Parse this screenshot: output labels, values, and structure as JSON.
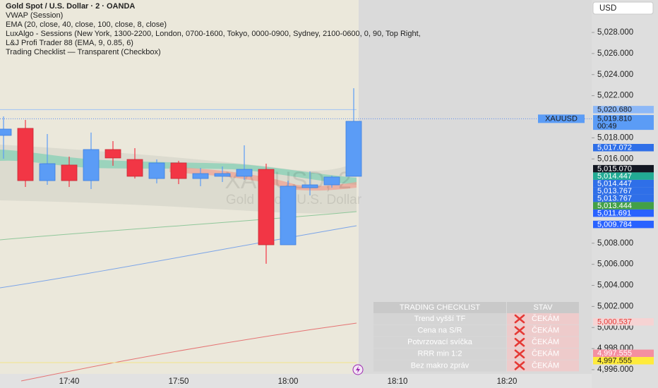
{
  "chart_data": {
    "type": "candlestick",
    "title": "Gold Spot / U.S. Dollar · 2 · OANDA",
    "indicators": [
      "VWAP (Session)",
      "EMA (20, close, 40, close, 100, close, 8, close)",
      "LuxAlgo - Sessions (New York, 1300-2200, London, 0700-1600, Tokyo, 0000-0900, Sydney, 2100-0600, 0, 90, Top Right,",
      "L&J Profi Trader 88 (EMA, 9, 0.85, 6)",
      "Trading Checklist — Transparent (Checkbox)"
    ],
    "watermark": {
      "symbol": "XAUUSD, 2",
      "description": "Gold Spot / U.S. Dollar"
    },
    "categories": [
      null,
      null,
      null,
      "17:40",
      null,
      null,
      null,
      null,
      "17:50",
      null,
      null,
      null,
      null,
      "18:00",
      null,
      null,
      null,
      null,
      "18:10",
      null,
      null,
      null,
      null,
      "18:20",
      null
    ],
    "open": [
      5018.23,
      5018.9,
      5013.94,
      5015.42,
      5013.94,
      5016.89,
      5015.95,
      5014.14,
      5015.62,
      5014.14,
      5014.35,
      5014.35,
      5015.01,
      5007.85,
      5013.27,
      5013.54,
      5014.35,
      null,
      null,
      null,
      null,
      null,
      null,
      null,
      null
    ],
    "high": [
      5020.03,
      5019.7,
      5018.36,
      5016.22,
      5018.5,
      5017.69,
      5017.02,
      5015.95,
      5015.82,
      5015.15,
      5015.28,
      5017.29,
      5015.55,
      5013.94,
      5014.81,
      5014.41,
      5022.71,
      null,
      null,
      null,
      null,
      null,
      null,
      null,
      null
    ],
    "low": [
      5016.02,
      5013.34,
      5013.54,
      5013.34,
      5013.14,
      5015.35,
      5014.14,
      5013.68,
      5013.61,
      5013.41,
      5013.81,
      5014.01,
      5006.05,
      5007.85,
      5012.54,
      5013.27,
      5014.35,
      null,
      null,
      null,
      null,
      null,
      null,
      null,
      null
    ],
    "close": [
      5018.83,
      5013.94,
      5015.55,
      5013.94,
      5016.89,
      5016.09,
      5014.35,
      5015.62,
      5014.14,
      5014.61,
      5014.61,
      5015.01,
      5007.85,
      5013.41,
      5013.54,
      5014.28,
      5019.57,
      null,
      null,
      null,
      null,
      null,
      null,
      null,
      null
    ],
    "up_color": "#5b9cf6",
    "down_color": "#f23645",
    "ylim": [
      4995.6,
      5031.08
    ],
    "yticks": [
      {
        "value": 4996,
        "label": "4,996.000"
      },
      {
        "value": 4998,
        "label": "4,998.000"
      },
      {
        "value": 5000,
        "label": "5,000.000"
      },
      {
        "value": 5002,
        "label": "5,002.000"
      },
      {
        "value": 5004,
        "label": "5,004.000"
      },
      {
        "value": 5006,
        "label": "5,006.000"
      },
      {
        "value": 5008,
        "label": "5,008.000"
      },
      {
        "value": 5016,
        "label": "5,016.000"
      },
      {
        "value": 5018,
        "label": "5,018.000"
      },
      {
        "value": 5022,
        "label": "5,022.000"
      },
      {
        "value": 5024,
        "label": "5,024.000"
      },
      {
        "value": 5026,
        "label": "5,026.000"
      },
      {
        "value": 5028,
        "label": "5,028.000"
      }
    ],
    "grid": false,
    "currency": "USD",
    "symbol_label": "XAUUSD",
    "last_price": {
      "value": 5019.81,
      "label": "5,019.810",
      "countdown": "00:49",
      "color": "#5b9cf6"
    },
    "price_labels": [
      {
        "value": 5020.68,
        "label": "5,020.680",
        "color": "#8db8f7",
        "text_color": "#1a1a1a"
      },
      {
        "value": 5017.072,
        "label": "5,017.072",
        "color": "#2f6fe8",
        "text_color": "#ffffff"
      },
      {
        "value": 5015.07,
        "label": "5,015.070",
        "color": "#131722",
        "text_color": "#ffffff"
      },
      {
        "value": 5014.447,
        "label": "5,014.447",
        "color": "#22ab94",
        "text_color": "#ffffff"
      },
      {
        "value": 5014.447,
        "label": "5,014.447",
        "color": "#2f6fe8",
        "text_color": "#ffffff"
      },
      {
        "value": 5013.767,
        "label": "5,013.767",
        "color": "#2f6fe8",
        "text_color": "#ffffff"
      },
      {
        "value": 5013.767,
        "label": "5,013.767",
        "color": "#2f6fe8",
        "text_color": "#ffffff"
      },
      {
        "value": 5013.444,
        "label": "5,013.444",
        "color": "#43a047",
        "text_color": "#ffffff"
      },
      {
        "value": 5011.691,
        "label": "5,011.691",
        "color": "#2962ff",
        "text_color": "#ffffff"
      },
      {
        "value": 5009.784,
        "label": "5,009.784",
        "color": "#2962ff",
        "text_color": "#ffffff"
      },
      {
        "value": 5000.537,
        "label": "5,000.537",
        "color": "#f6d3d3",
        "text_color": "#e53935"
      },
      {
        "value": 4997.555,
        "label": "4,997.555",
        "color": "#f48fa0",
        "text_color": "#ffffff"
      },
      {
        "value": 4997.555,
        "label": "4,997.555",
        "color": "#ffeb3b",
        "text_color": "#1a1a1a"
      }
    ]
  },
  "checklist": {
    "header": [
      "TRADING CHECKLIST",
      "STAV"
    ],
    "rows": [
      {
        "item": "Trend vyšší TF",
        "status": "ČEKÁM"
      },
      {
        "item": "Cena na S/R",
        "status": "ČEKÁM"
      },
      {
        "item": "Potvrzovací svíčka",
        "status": "ČEKÁM"
      },
      {
        "item": "RRR min 1:2",
        "status": "ČEKÁM"
      },
      {
        "item": "Bez makro zpráv",
        "status": "ČEKÁM"
      }
    ]
  }
}
